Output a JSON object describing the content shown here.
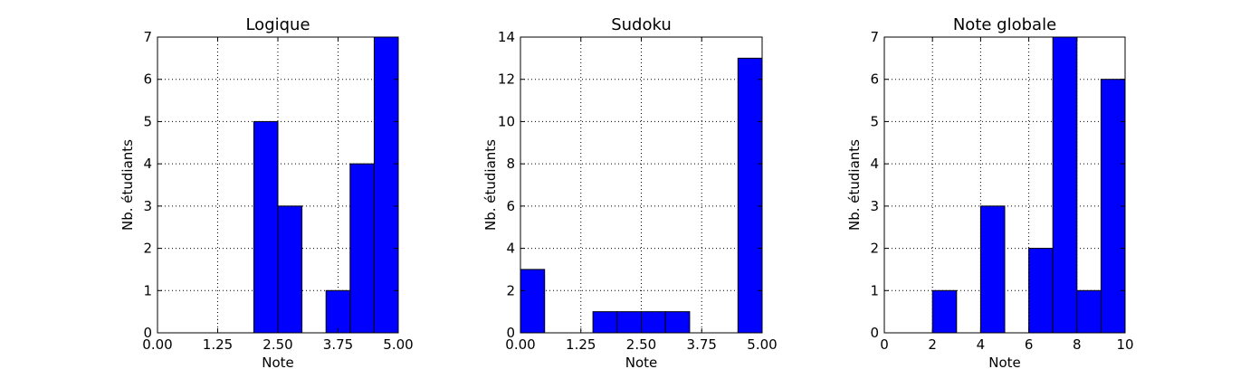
{
  "chart_data": [
    {
      "type": "bar",
      "title": "Logique",
      "xlabel": "Note",
      "ylabel": "Nb. étudiants",
      "xlim": [
        0,
        5
      ],
      "ylim": [
        0,
        7
      ],
      "xticks": [
        "0.00",
        "1.25",
        "2.50",
        "3.75",
        "5.00"
      ],
      "yticks": [
        "0",
        "1",
        "2",
        "3",
        "4",
        "5",
        "6",
        "7"
      ],
      "grid": true,
      "bins": [
        [
          0,
          0.5
        ],
        [
          0.5,
          1
        ],
        [
          1,
          1.5
        ],
        [
          1.5,
          2
        ],
        [
          2,
          2.5
        ],
        [
          2.5,
          3
        ],
        [
          3,
          3.5
        ],
        [
          3.5,
          4
        ],
        [
          4,
          4.5
        ],
        [
          4.5,
          5
        ]
      ],
      "values": [
        0,
        0,
        0,
        0,
        5,
        3,
        0,
        1,
        4,
        7
      ],
      "color": "#0000ff"
    },
    {
      "type": "bar",
      "title": "Sudoku",
      "xlabel": "Note",
      "ylabel": "Nb. étudiants",
      "xlim": [
        0,
        5
      ],
      "ylim": [
        0,
        14
      ],
      "xticks": [
        "0.00",
        "1.25",
        "2.50",
        "3.75",
        "5.00"
      ],
      "yticks": [
        "0",
        "2",
        "4",
        "6",
        "8",
        "10",
        "12",
        "14"
      ],
      "grid": true,
      "bins": [
        [
          0,
          0.5
        ],
        [
          0.5,
          1
        ],
        [
          1,
          1.5
        ],
        [
          1.5,
          2
        ],
        [
          2,
          2.5
        ],
        [
          2.5,
          3
        ],
        [
          3,
          3.5
        ],
        [
          3.5,
          4
        ],
        [
          4,
          4.5
        ],
        [
          4.5,
          5
        ]
      ],
      "values": [
        3,
        0,
        0,
        1,
        1,
        1,
        1,
        0,
        0,
        13
      ],
      "color": "#0000ff"
    },
    {
      "type": "bar",
      "title": "Note globale",
      "xlabel": "Note",
      "ylabel": "Nb. étudiants",
      "xlim": [
        0,
        10
      ],
      "ylim": [
        0,
        7
      ],
      "xticks": [
        "0",
        "2",
        "4",
        "6",
        "8",
        "10"
      ],
      "yticks": [
        "0",
        "1",
        "2",
        "3",
        "4",
        "5",
        "6",
        "7"
      ],
      "grid": true,
      "bins": [
        [
          0,
          1
        ],
        [
          1,
          2
        ],
        [
          2,
          3
        ],
        [
          3,
          4
        ],
        [
          4,
          5
        ],
        [
          5,
          6
        ],
        [
          6,
          7
        ],
        [
          7,
          8
        ],
        [
          8,
          9
        ],
        [
          9,
          10
        ]
      ],
      "values": [
        0,
        0,
        1,
        0,
        3,
        0,
        2,
        7,
        1,
        6
      ],
      "color": "#0000ff"
    }
  ]
}
